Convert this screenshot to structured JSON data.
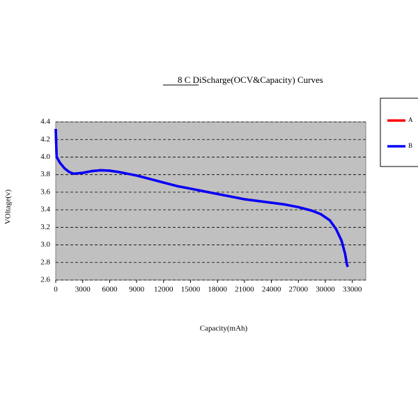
{
  "chart_data": {
    "type": "line",
    "title": "8 C  DiScharge(OCV&Capacity)  Curves",
    "x_label": "Capacity(mAh)",
    "y_label": "VOltage(v)",
    "x": [
      0,
      100,
      500,
      1000,
      1500,
      2000,
      3000,
      4000,
      5000,
      6000,
      7000,
      8000,
      9000,
      10500,
      12000,
      13500,
      15000,
      16500,
      18000,
      19500,
      21000,
      22500,
      24000,
      25500,
      27000,
      28500,
      29500,
      30500,
      31200,
      31800,
      32200,
      32400,
      32500
    ],
    "series": [
      {
        "name": "A",
        "color": "#ff0000",
        "values": [
          4.32,
          4.0,
          3.93,
          3.87,
          3.83,
          3.81,
          3.82,
          3.84,
          3.85,
          3.845,
          3.83,
          3.81,
          3.79,
          3.75,
          3.71,
          3.67,
          3.64,
          3.61,
          3.58,
          3.55,
          3.52,
          3.5,
          3.48,
          3.46,
          3.43,
          3.39,
          3.35,
          3.28,
          3.18,
          3.05,
          2.9,
          2.78,
          2.75
        ]
      },
      {
        "name": "B",
        "color": "#0000ff",
        "values": [
          4.32,
          4.0,
          3.93,
          3.87,
          3.83,
          3.81,
          3.82,
          3.84,
          3.85,
          3.845,
          3.83,
          3.81,
          3.79,
          3.75,
          3.71,
          3.67,
          3.64,
          3.61,
          3.58,
          3.55,
          3.52,
          3.5,
          3.48,
          3.46,
          3.43,
          3.39,
          3.35,
          3.28,
          3.18,
          3.05,
          2.9,
          2.78,
          2.75
        ]
      }
    ],
    "xlim": [
      0,
      34500
    ],
    "xticks": [
      0,
      3000,
      6000,
      9000,
      12000,
      15000,
      18000,
      21000,
      24000,
      27000,
      30000,
      33000
    ],
    "ylim": [
      2.6,
      4.4
    ],
    "yticks": [
      2.6,
      2.8,
      {
        "value": 3.0,
        "label": "3.0"
      },
      3.2,
      3.4,
      3.6,
      3.8,
      {
        "value": 4.0,
        "label": "4.0"
      },
      4.2,
      4.4
    ],
    "grid": true,
    "legend": "right"
  }
}
